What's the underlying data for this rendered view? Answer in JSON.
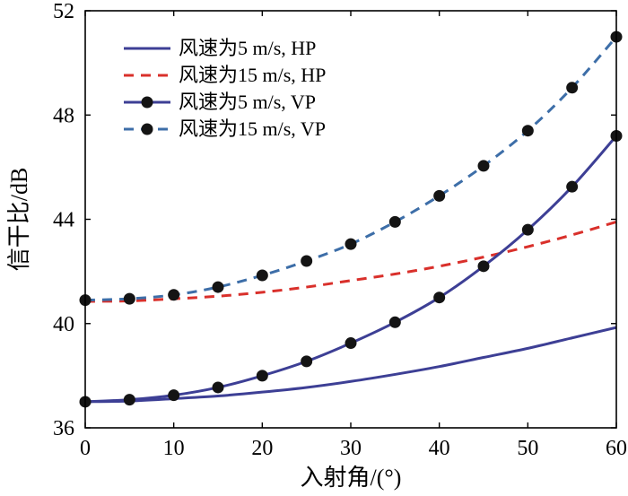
{
  "chart_data": {
    "type": "line",
    "title": "",
    "xlabel": "入射角/(°)",
    "ylabel": "信干比/dB",
    "xlim": [
      0,
      60
    ],
    "ylim": [
      36,
      52
    ],
    "xticks": [
      0,
      10,
      20,
      30,
      40,
      50,
      60
    ],
    "yticks": [
      36,
      40,
      44,
      48,
      52
    ],
    "grid": false,
    "legend_position": "top-left",
    "x": [
      0,
      5,
      10,
      15,
      20,
      25,
      30,
      35,
      40,
      45,
      50,
      55,
      60
    ],
    "series": [
      {
        "name": "风速为5 m/s, HP",
        "style": "solid",
        "marker": "none",
        "color": "#3d3f95",
        "values": [
          37.0,
          37.03,
          37.12,
          37.22,
          37.37,
          37.55,
          37.78,
          38.05,
          38.35,
          38.7,
          39.05,
          39.45,
          39.85
        ]
      },
      {
        "name": "风速为15 m/s, HP",
        "style": "dashed",
        "marker": "none",
        "color": "#d9302b",
        "values": [
          40.85,
          40.87,
          40.95,
          41.05,
          41.2,
          41.4,
          41.65,
          41.9,
          42.2,
          42.55,
          42.95,
          43.4,
          43.9
        ]
      },
      {
        "name": "风速为5 m/s, VP",
        "style": "solid",
        "marker": "circle",
        "color": "#3d3f95",
        "values": [
          37.0,
          37.08,
          37.25,
          37.55,
          38.0,
          38.55,
          39.25,
          40.05,
          41.0,
          42.2,
          43.6,
          45.25,
          47.2
        ]
      },
      {
        "name": "风速为15 m/s, VP",
        "style": "dashed",
        "marker": "circle",
        "color": "#3d6ea8",
        "values": [
          40.9,
          40.95,
          41.1,
          41.4,
          41.85,
          42.4,
          43.05,
          43.9,
          44.9,
          46.05,
          47.4,
          49.05,
          51.0
        ]
      }
    ]
  }
}
